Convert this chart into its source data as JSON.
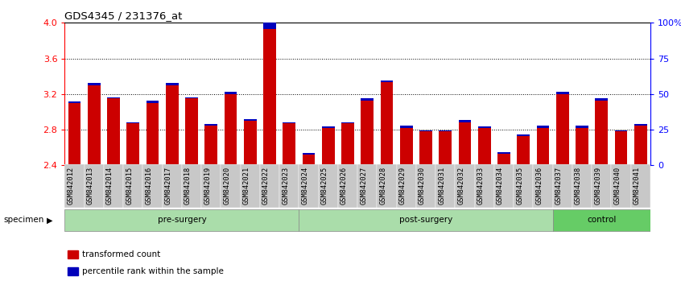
{
  "title": "GDS4345 / 231376_at",
  "categories": [
    "GSM842012",
    "GSM842013",
    "GSM842014",
    "GSM842015",
    "GSM842016",
    "GSM842017",
    "GSM842018",
    "GSM842019",
    "GSM842020",
    "GSM842021",
    "GSM842022",
    "GSM842023",
    "GSM842024",
    "GSM842025",
    "GSM842026",
    "GSM842027",
    "GSM842028",
    "GSM842029",
    "GSM842030",
    "GSM842031",
    "GSM842032",
    "GSM842033",
    "GSM842034",
    "GSM842035",
    "GSM842036",
    "GSM842037",
    "GSM842038",
    "GSM842039",
    "GSM842040",
    "GSM842041"
  ],
  "red_values": [
    3.1,
    3.3,
    3.15,
    2.87,
    3.1,
    3.3,
    3.15,
    2.85,
    3.2,
    2.9,
    3.93,
    2.87,
    2.52,
    2.82,
    2.87,
    3.13,
    3.33,
    2.82,
    2.78,
    2.78,
    2.88,
    2.82,
    2.53,
    2.73,
    2.82,
    3.2,
    2.82,
    3.13,
    2.78,
    2.85
  ],
  "blue_values": [
    0.015,
    0.025,
    0.015,
    0.015,
    0.025,
    0.025,
    0.015,
    0.015,
    0.025,
    0.015,
    0.1,
    0.015,
    0.015,
    0.015,
    0.015,
    0.025,
    0.025,
    0.025,
    0.015,
    0.015,
    0.025,
    0.015,
    0.015,
    0.015,
    0.025,
    0.025,
    0.025,
    0.025,
    0.015,
    0.015
  ],
  "ymin": 2.4,
  "ymax": 4.0,
  "yticks": [
    2.4,
    2.8,
    3.2,
    3.6,
    4.0
  ],
  "ytick_dotted": [
    2.8,
    3.2,
    3.6
  ],
  "right_ytick_vals": [
    2.4,
    2.8,
    3.2,
    3.6,
    4.0
  ],
  "right_ylabels": [
    "0",
    "25",
    "50",
    "75",
    "100%"
  ],
  "groups": [
    {
      "label": "pre-surgery",
      "start": 0,
      "end": 12,
      "light": true
    },
    {
      "label": "post-surgery",
      "start": 12,
      "end": 25,
      "light": true
    },
    {
      "label": "control",
      "start": 25,
      "end": 30,
      "light": false
    }
  ],
  "red_color": "#CC0000",
  "blue_color": "#0000BB",
  "specimen_label": "specimen",
  "legend_items": [
    {
      "label": "transformed count",
      "color": "#CC0000"
    },
    {
      "label": "percentile rank within the sample",
      "color": "#0000BB"
    }
  ],
  "light_green": "#aaddaa",
  "dark_green": "#66cc66",
  "tickbox_color": "#c8c8c8"
}
